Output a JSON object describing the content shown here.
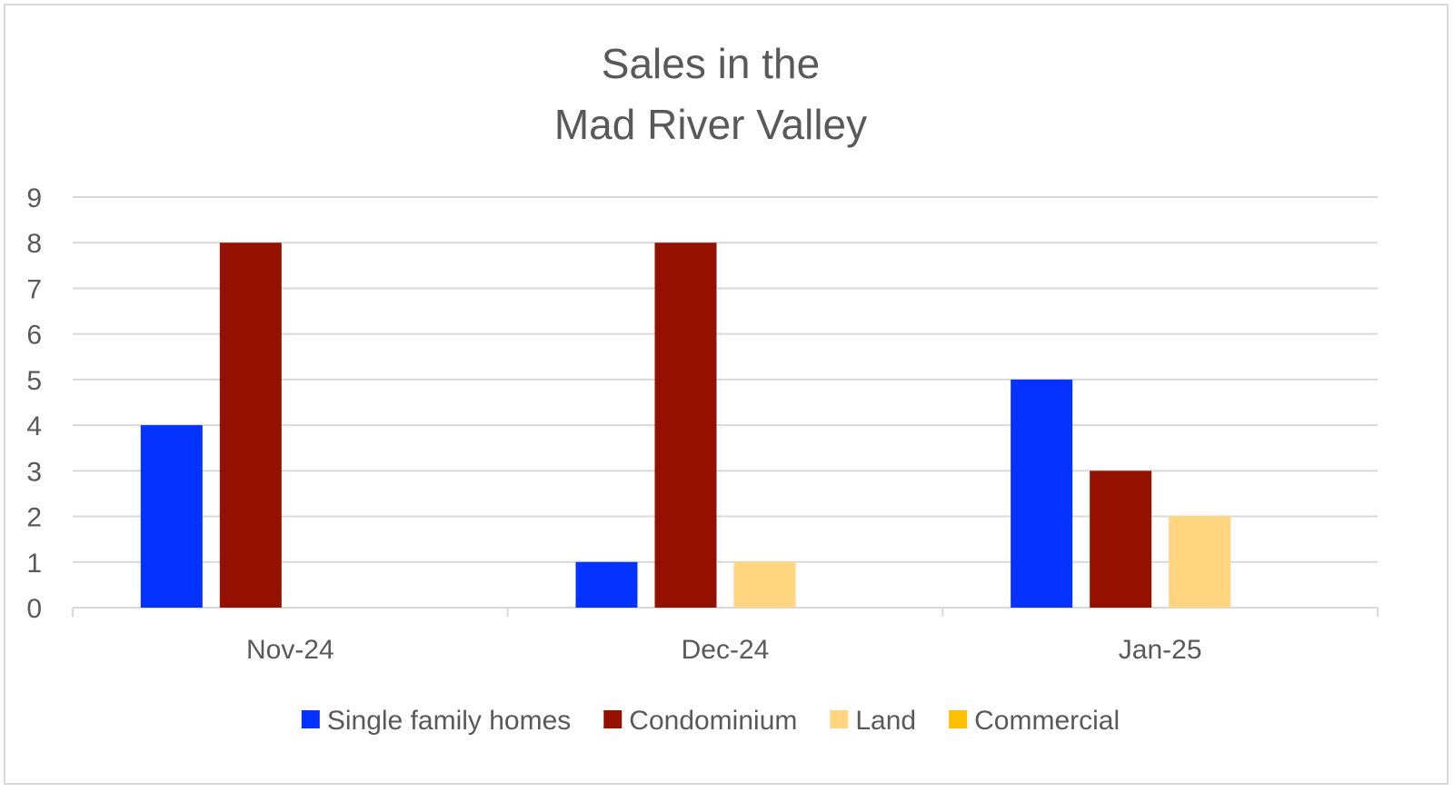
{
  "chart_data": {
    "type": "bar",
    "title_lines": [
      "Sales in the",
      "Mad River Valley"
    ],
    "categories": [
      "Nov-24",
      "Dec-24",
      "Jan-25"
    ],
    "series": [
      {
        "name": "Single family homes",
        "color": "#0433FF",
        "values": [
          4,
          1,
          5
        ]
      },
      {
        "name": "Condominium",
        "color": "#941100",
        "values": [
          8,
          8,
          3
        ]
      },
      {
        "name": "Land",
        "color": "#FFD580",
        "values": [
          0,
          1,
          2
        ]
      },
      {
        "name": "Commercial",
        "color": "#FFC000",
        "values": [
          0,
          0,
          0
        ]
      }
    ],
    "ylim": [
      0,
      9
    ],
    "yticks": [
      "0",
      "1",
      "2",
      "3",
      "4",
      "5",
      "6",
      "7",
      "8",
      "9"
    ],
    "grid": true,
    "legend_position": "bottom"
  }
}
